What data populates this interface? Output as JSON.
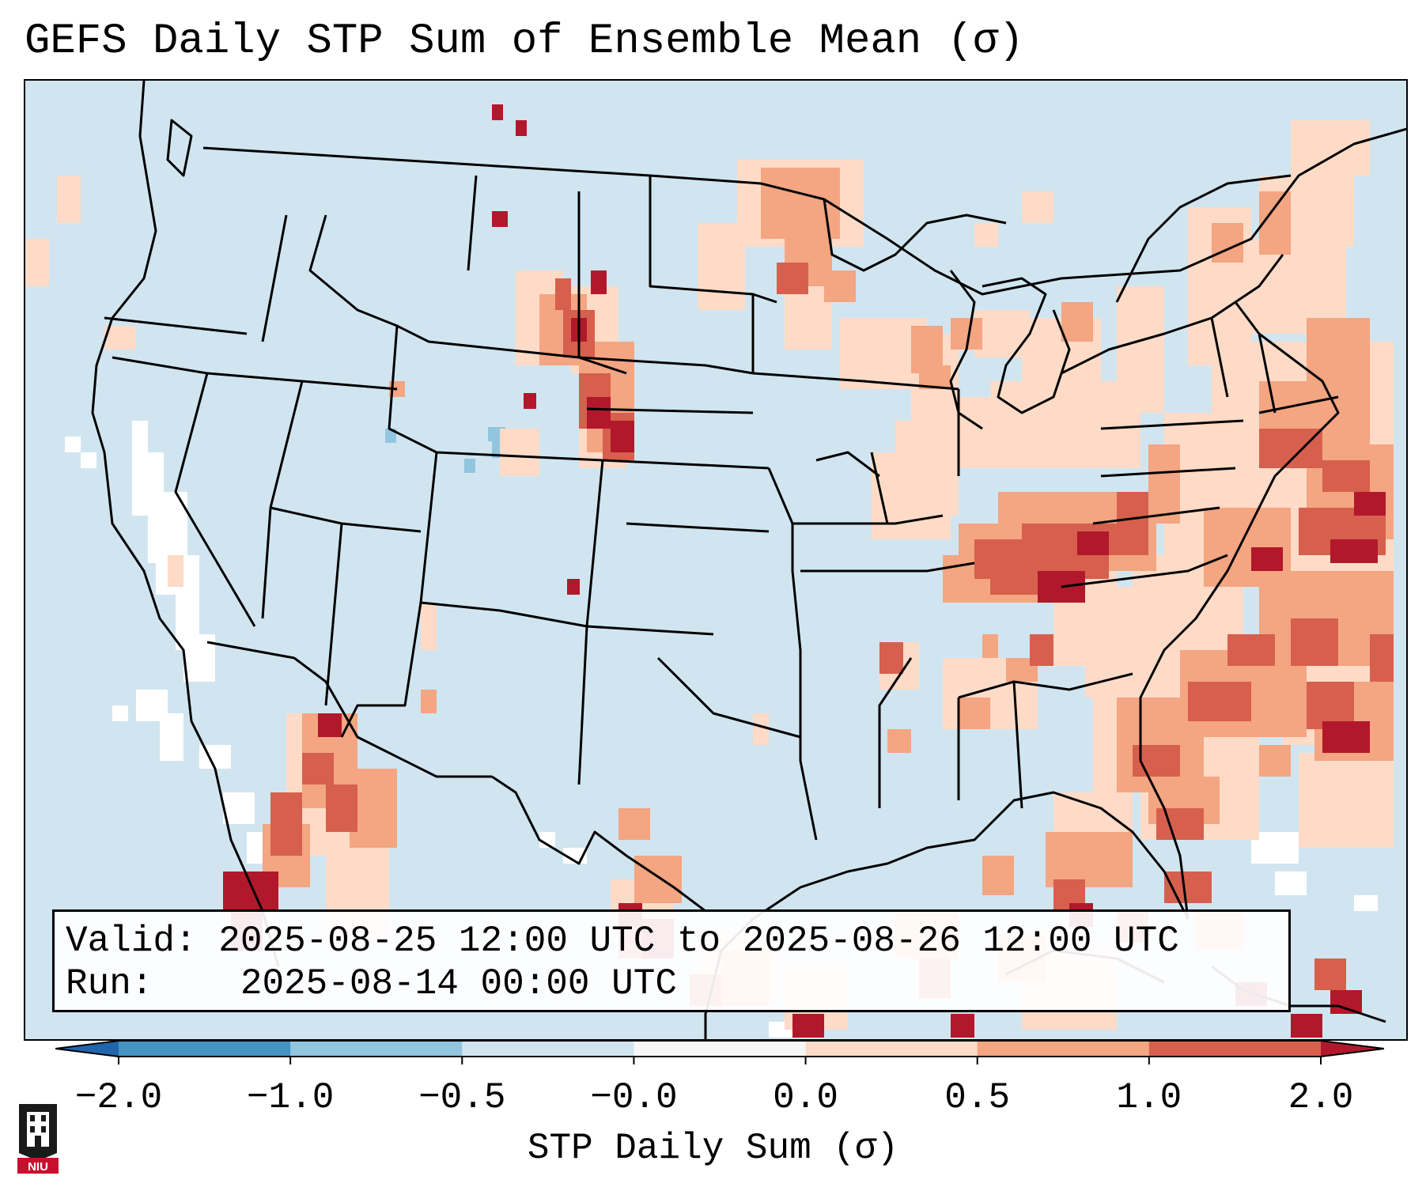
{
  "title": "GEFS Daily STP Sum of Ensemble Mean (σ)",
  "info": {
    "valid_label": "Valid:",
    "valid_value": "2025-08-25 12:00 UTC to 2025-08-26 12:00 UTC",
    "run_label": "Run:",
    "run_value": "2025-08-14 00:00 UTC"
  },
  "colorbar": {
    "label": "STP Daily Sum (σ)",
    "ticks": [
      "−2.0",
      "−1.0",
      "−0.5",
      "−0.0",
      "0.0",
      "0.5",
      "1.0",
      "2.0"
    ],
    "bin_colors": [
      "#2166ac",
      "#4393c3",
      "#92c5de",
      "#d1e5f0",
      "#f7f7f7",
      "#fddbc7",
      "#f4a582",
      "#d6604d",
      "#b2182b"
    ],
    "under_color": "#2166ac",
    "over_color": "#b2182b"
  },
  "logo": {
    "text": "NIU"
  },
  "colors": {
    "background": "#d1e5f0",
    "neutral": "#ffffff",
    "light_positive": "#fddbc7",
    "medium_positive": "#f4a582",
    "strong_positive": "#d6604d",
    "extreme_positive": "#b2182b",
    "light_negative": "#92c5de",
    "border": "#000000"
  }
}
